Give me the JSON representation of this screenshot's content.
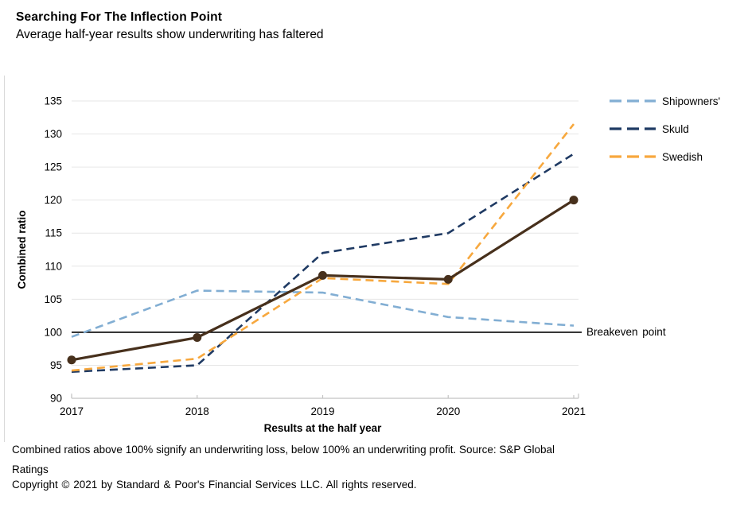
{
  "header": {
    "title": "Searching For The Inflection Point",
    "subtitle": "Average half-year results show underwriting has faltered"
  },
  "chart_data": {
    "type": "line",
    "x": [
      "2017",
      "2018",
      "2019",
      "2020",
      "2021"
    ],
    "series": [
      {
        "name": "Shipowners'",
        "values": [
          99.3,
          106.3,
          106.0,
          102.3,
          101.0
        ],
        "color": "#82aed3",
        "style": "dashed",
        "in_legend": true
      },
      {
        "name": "Skuld",
        "values": [
          94.0,
          95.0,
          112.0,
          115.0,
          127.0
        ],
        "color": "#1f3a63",
        "style": "dashed",
        "in_legend": true
      },
      {
        "name": "Swedish",
        "values": [
          94.2,
          96.0,
          108.2,
          107.3,
          131.5
        ],
        "color": "#f7a83e",
        "style": "dashed",
        "in_legend": true
      },
      {
        "name": "",
        "values": [
          95.8,
          99.2,
          108.6,
          108.0,
          120.0
        ],
        "color": "#47301c",
        "style": "solid-markers",
        "in_legend": false
      }
    ],
    "xlabel": "Results at the half year",
    "ylabel": "Combined ratio",
    "ylim": [
      90,
      135
    ],
    "ytick_step": 5,
    "reference_line": {
      "value": 100,
      "label": "Breakeven point",
      "color": "#000000"
    },
    "grid": "horizontal",
    "grid_color": "#e6e6e6",
    "axis_color": "#c4c4c4",
    "legend_position": "right"
  },
  "footer": {
    "footnote": "Combined ratios above 100% signify an underwriting loss, below 100% an underwriting profit. Source: S&P Global Ratings",
    "copyright": "Copyright © 2021 by Standard & Poor's Financial Services LLC. All rights reserved."
  }
}
